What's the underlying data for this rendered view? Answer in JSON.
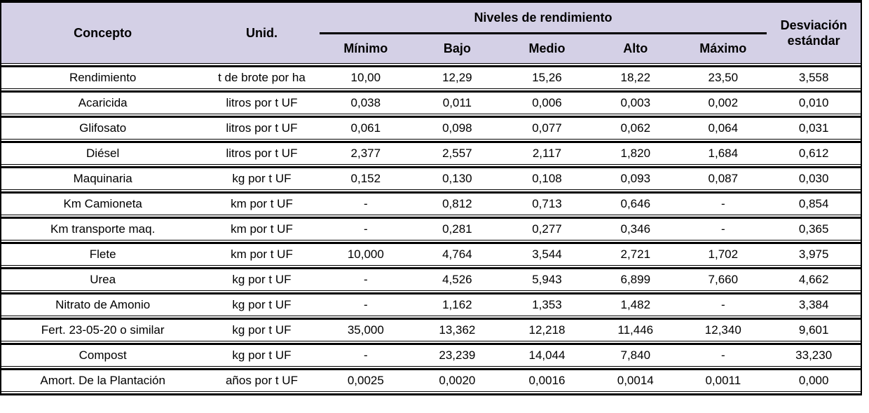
{
  "colors": {
    "header_bg": "#d4d0e6",
    "border": "#000000",
    "row_bg": "#ffffff",
    "text": "#000000"
  },
  "chart_data": {
    "type": "table",
    "title": "",
    "column_group_label": "Niveles de rendimiento",
    "column_group_spans": [
      "Mínimo",
      "Bajo",
      "Medio",
      "Alto",
      "Máximo"
    ],
    "columns": [
      "Concepto",
      "Unid.",
      "Mínimo",
      "Bajo",
      "Medio",
      "Alto",
      "Máximo",
      "Desviación estándar"
    ],
    "rows": [
      [
        "Rendimiento",
        "t de brote por ha",
        "10,00",
        "12,29",
        "15,26",
        "18,22",
        "23,50",
        "3,558"
      ],
      [
        "Acaricida",
        "litros por t UF",
        "0,038",
        "0,011",
        "0,006",
        "0,003",
        "0,002",
        "0,010"
      ],
      [
        "Glifosato",
        "litros por t UF",
        "0,061",
        "0,098",
        "0,077",
        "0,062",
        "0,064",
        "0,031"
      ],
      [
        "Diésel",
        "litros por t UF",
        "2,377",
        "2,557",
        "2,117",
        "1,820",
        "1,684",
        "0,612"
      ],
      [
        "Maquinaria",
        "kg por t UF",
        "0,152",
        "0,130",
        "0,108",
        "0,093",
        "0,087",
        "0,030"
      ],
      [
        "Km Camioneta",
        "km por t UF",
        "-",
        "0,812",
        "0,713",
        "0,646",
        "-",
        "0,854"
      ],
      [
        "Km transporte maq.",
        "km por t UF",
        "-",
        "0,281",
        "0,277",
        "0,346",
        "-",
        "0,365"
      ],
      [
        "Flete",
        "km por t UF",
        "10,000",
        "4,764",
        "3,544",
        "2,721",
        "1,702",
        "3,975"
      ],
      [
        "Urea",
        "kg por t UF",
        "-",
        "4,526",
        "5,943",
        "6,899",
        "7,660",
        "4,662"
      ],
      [
        "Nitrato de Amonio",
        "kg por t UF",
        "-",
        "1,162",
        "1,353",
        "1,482",
        "-",
        "3,384"
      ],
      [
        "Fert. 23-05-20 o similar",
        "kg por t UF",
        "35,000",
        "13,362",
        "12,218",
        "11,446",
        "12,340",
        "9,601"
      ],
      [
        "Compost",
        "kg por t UF",
        "-",
        "23,239",
        "14,044",
        "7,840",
        "-",
        "33,230"
      ],
      [
        "Amort. De la Plantación",
        "años por t UF",
        "0,0025",
        "0,0020",
        "0,0016",
        "0,0014",
        "0,0011",
        "0,000"
      ]
    ]
  }
}
